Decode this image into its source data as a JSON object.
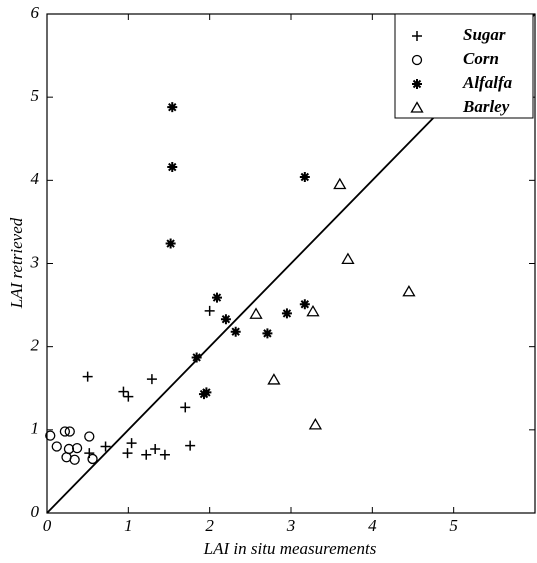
{
  "chart_data": {
    "type": "scatter",
    "x_label": "LAI  in situ measurements",
    "y_label": "LAI  retrieved",
    "xlim": [
      0,
      6
    ],
    "ylim": [
      0,
      6
    ],
    "xticks": [
      0,
      1,
      2,
      3,
      4,
      5
    ],
    "yticks": [
      0,
      1,
      2,
      3,
      4,
      5,
      6
    ],
    "legend": "upper right",
    "series": [
      {
        "name": "Sugar",
        "color": "#000000",
        "marker": "plus",
        "x": [
          0.5,
          0.94,
          1.0,
          1.29,
          0.72,
          0.99,
          1.04,
          1.22,
          1.33,
          1.45,
          1.7,
          1.76,
          2.0,
          0.52
        ],
        "values": [
          1.64,
          1.46,
          1.4,
          1.61,
          0.8,
          0.72,
          0.84,
          0.7,
          0.77,
          0.7,
          1.27,
          0.81,
          2.43,
          0.72
        ]
      },
      {
        "name": "Corn",
        "color": "#000000",
        "marker": "circle",
        "x": [
          0.04,
          0.12,
          0.22,
          0.24,
          0.28,
          0.27,
          0.37,
          0.34,
          0.52,
          0.56
        ],
        "values": [
          0.93,
          0.8,
          0.98,
          0.67,
          0.98,
          0.77,
          0.78,
          0.64,
          0.92,
          0.65
        ]
      },
      {
        "name": "Alfalfa",
        "color": "#000000",
        "marker": "star",
        "x": [
          1.54,
          1.54,
          1.52,
          2.09,
          2.2,
          2.32,
          1.84,
          1.93,
          1.96,
          2.71,
          2.95,
          3.17,
          3.17
        ],
        "values": [
          4.88,
          4.16,
          3.24,
          2.59,
          2.33,
          2.18,
          1.87,
          1.43,
          1.45,
          2.16,
          2.4,
          2.51,
          4.04
        ]
      },
      {
        "name": "Barley",
        "color": "#000000",
        "marker": "triangle",
        "x": [
          2.57,
          2.79,
          3.27,
          3.3,
          3.7,
          3.6,
          4.45
        ],
        "values": [
          2.39,
          1.6,
          2.42,
          1.06,
          3.05,
          3.95,
          2.66
        ]
      }
    ]
  }
}
